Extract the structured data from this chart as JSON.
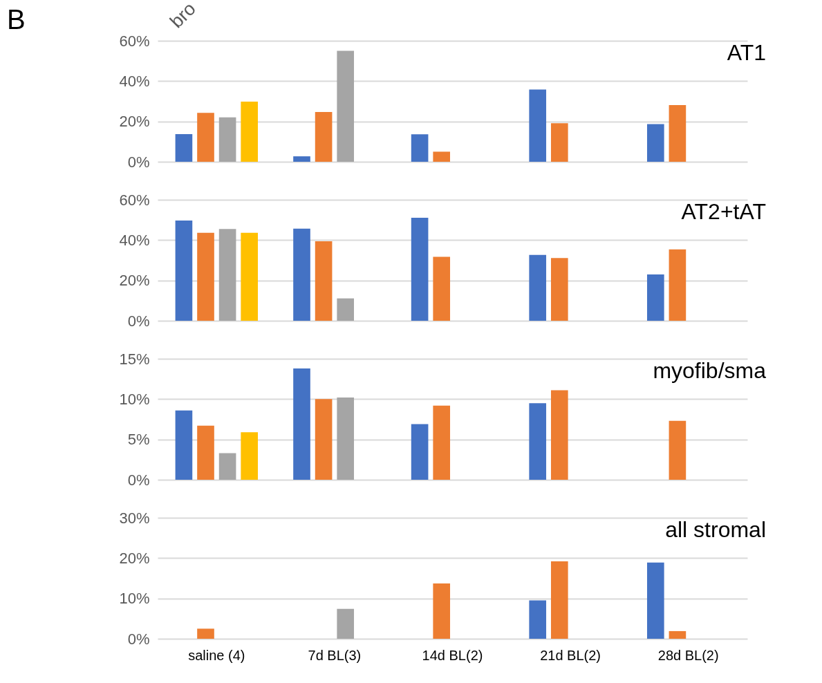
{
  "chart_data": [
    {
      "type": "bar",
      "title": "AT1",
      "annotations": [
        "B",
        "bro"
      ],
      "categories": [
        null,
        null,
        null,
        null,
        null
      ],
      "series": [
        {
          "color": "#4472c4",
          "values": [
            13.7,
            2.7,
            13.6,
            35.8,
            18.7
          ]
        },
        {
          "color": "#ed7d31",
          "values": [
            24.3,
            24.7,
            5.0,
            19.1,
            28.1
          ]
        },
        {
          "color": "#a5a5a5",
          "values": [
            22,
            55,
            null,
            null,
            null
          ]
        },
        {
          "color": "#ffc000",
          "values": [
            29.8,
            null,
            null,
            null,
            null
          ]
        }
      ],
      "ylim": [
        0,
        60
      ],
      "yticks": [
        {
          "value": 0,
          "label": "0%"
        },
        {
          "value": 20,
          "label": "20%"
        },
        {
          "value": 40,
          "label": "40%"
        },
        {
          "value": 60,
          "label": "60%"
        }
      ],
      "grid": "y",
      "tick_labels": "y"
    },
    {
      "type": "bar",
      "title": "AT2+tAT",
      "categories": [
        null,
        null,
        null,
        null,
        null
      ],
      "series": [
        {
          "color": "#4472c4",
          "values": [
            49.7,
            45.7,
            51.1,
            32.7,
            23.0
          ]
        },
        {
          "color": "#ed7d31",
          "values": [
            43.6,
            39.4,
            31.7,
            31.1,
            35.4
          ]
        },
        {
          "color": "#a5a5a5",
          "values": [
            45.5,
            11.1,
            null,
            null,
            null
          ]
        },
        {
          "color": "#ffc000",
          "values": [
            43.6,
            null,
            null,
            null,
            null
          ]
        }
      ],
      "ylim": [
        0,
        60
      ],
      "yticks": [
        {
          "value": 0,
          "label": "0%"
        },
        {
          "value": 20,
          "label": "20%"
        },
        {
          "value": 40,
          "label": "40%"
        },
        {
          "value": 60,
          "label": "60%"
        }
      ],
      "grid": "y",
      "tick_labels": "y"
    },
    {
      "type": "bar",
      "title": "myofib/sma",
      "categories": [
        null,
        null,
        null,
        null,
        null
      ],
      "series": [
        {
          "color": "#4472c4",
          "values": [
            8.6,
            13.8,
            6.9,
            9.5,
            null
          ]
        },
        {
          "color": "#ed7d31",
          "values": [
            6.7,
            10.0,
            9.2,
            11.1,
            7.3
          ]
        },
        {
          "color": "#a5a5a5",
          "values": [
            3.3,
            10.2,
            null,
            null,
            null
          ]
        },
        {
          "color": "#ffc000",
          "values": [
            5.9,
            null,
            null,
            null,
            null
          ]
        }
      ],
      "ylim": [
        0,
        15
      ],
      "yticks": [
        {
          "value": 0,
          "label": "0%"
        },
        {
          "value": 5,
          "label": "5%"
        },
        {
          "value": 10,
          "label": "10%"
        },
        {
          "value": 15,
          "label": "15%"
        }
      ],
      "grid": "y",
      "tick_labels": "y"
    },
    {
      "type": "bar",
      "title": "all stromal",
      "categories": [
        "saline (4)",
        "7d BL(3)",
        "14d BL(2)",
        "21d BL(2)",
        "28d BL(2)"
      ],
      "series": [
        {
          "color": "#4472c4",
          "values": [
            null,
            null,
            null,
            9.5,
            18.9
          ]
        },
        {
          "color": "#ed7d31",
          "values": [
            2.5,
            null,
            13.7,
            19.2,
            1.9
          ]
        },
        {
          "color": "#a5a5a5",
          "values": [
            null,
            7.4,
            null,
            null,
            null
          ]
        },
        {
          "color": "#ffc000",
          "values": [
            null,
            null,
            null,
            null,
            null
          ]
        }
      ],
      "ylim": [
        0,
        30
      ],
      "yticks": [
        {
          "value": 0,
          "label": "0%"
        },
        {
          "value": 10,
          "label": "10%"
        },
        {
          "value": 20,
          "label": "20%"
        },
        {
          "value": 30,
          "label": "30%"
        }
      ],
      "grid": "y"
    }
  ]
}
